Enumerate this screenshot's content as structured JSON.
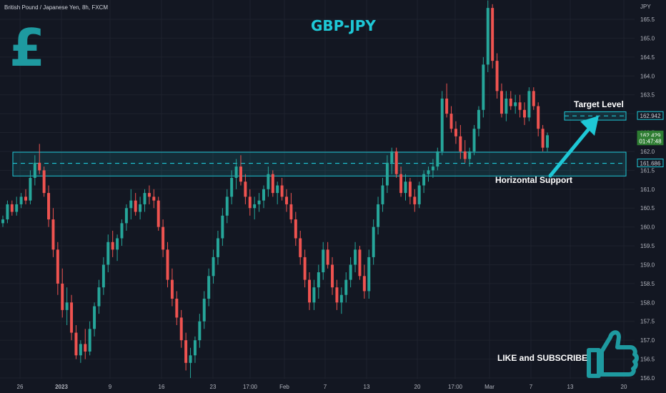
{
  "header": {
    "symbol_desc": "British Pound / Japanese Yen, 8h, FXCM"
  },
  "title": "GBP-JPY",
  "currency_unit": "JPY",
  "annotations": {
    "target": "Target Level",
    "support": "Horizontal Support",
    "cta": "LIKE and SUBSCRIBE"
  },
  "colors": {
    "up": "#26a69a",
    "down": "#ef5350",
    "accent": "#1ec8d6",
    "background": "#131722",
    "grid": "#1e222d"
  },
  "icons": {
    "logo": "pound-sign-icon",
    "cta": "thumbs-up-icon"
  },
  "chart_data": {
    "type": "candlestick",
    "yticks": [
      156.0,
      156.5,
      157.0,
      157.5,
      158.0,
      158.5,
      159.0,
      159.5,
      160.0,
      160.5,
      161.0,
      161.5,
      162.0,
      162.5,
      163.0,
      163.5,
      164.0,
      164.5,
      165.0,
      165.5
    ],
    "ylim": [
      155.9,
      166.0
    ],
    "xticks": [
      "26",
      "2023",
      "9",
      "16",
      "23",
      "17:00",
      "Feb",
      "7",
      "13",
      "20",
      "17:00",
      "Mar",
      "7",
      "13",
      "20"
    ],
    "price_labels": [
      {
        "text": "162.942",
        "value": 162.942,
        "style": "level"
      },
      {
        "text": "162.429",
        "value": 162.429,
        "style": "last"
      },
      {
        "text": "01:47:48",
        "value": 162.27,
        "style": "timer"
      },
      {
        "text": "161.686",
        "value": 161.686,
        "style": "level"
      }
    ],
    "levels": {
      "target": 162.942,
      "support": 161.686
    },
    "zones": {
      "support_zone": [
        161.35,
        161.98
      ],
      "target_zone": [
        162.83,
        163.05
      ]
    },
    "candles": [
      [
        160.1,
        160.3,
        160.0,
        160.2
      ],
      [
        160.2,
        160.7,
        160.1,
        160.6
      ],
      [
        160.6,
        160.7,
        160.3,
        160.4
      ],
      [
        160.4,
        160.8,
        160.3,
        160.6
      ],
      [
        160.6,
        160.9,
        160.5,
        160.8
      ],
      [
        160.8,
        161.0,
        160.6,
        160.7
      ],
      [
        160.7,
        161.5,
        160.6,
        161.3
      ],
      [
        161.3,
        161.9,
        161.1,
        161.7
      ],
      [
        161.7,
        162.2,
        161.4,
        161.5
      ],
      [
        161.5,
        161.6,
        160.8,
        160.9
      ],
      [
        160.9,
        161.1,
        160.0,
        160.2
      ],
      [
        160.2,
        160.5,
        159.2,
        159.4
      ],
      [
        159.4,
        159.6,
        158.2,
        158.5
      ],
      [
        158.5,
        158.9,
        157.6,
        157.8
      ],
      [
        157.8,
        158.4,
        157.4,
        158.0
      ],
      [
        158.0,
        158.2,
        157.0,
        157.2
      ],
      [
        157.2,
        157.4,
        156.5,
        156.6
      ],
      [
        156.6,
        157.0,
        156.4,
        156.9
      ],
      [
        156.9,
        157.3,
        156.5,
        156.7
      ],
      [
        156.7,
        157.5,
        156.6,
        157.3
      ],
      [
        157.3,
        158.0,
        157.1,
        157.9
      ],
      [
        157.9,
        158.6,
        157.7,
        158.4
      ],
      [
        158.4,
        159.2,
        158.2,
        159.0
      ],
      [
        159.0,
        159.8,
        158.8,
        159.6
      ],
      [
        159.6,
        159.9,
        159.2,
        159.4
      ],
      [
        159.4,
        159.8,
        159.1,
        159.7
      ],
      [
        159.7,
        160.2,
        159.5,
        160.1
      ],
      [
        160.1,
        160.6,
        159.9,
        160.5
      ],
      [
        160.5,
        161.0,
        160.2,
        160.7
      ],
      [
        160.7,
        160.9,
        160.3,
        160.4
      ],
      [
        160.4,
        160.8,
        160.2,
        160.6
      ],
      [
        160.6,
        161.0,
        160.4,
        160.9
      ],
      [
        160.9,
        161.1,
        160.6,
        160.8
      ],
      [
        160.8,
        161.0,
        160.5,
        160.7
      ],
      [
        160.7,
        160.8,
        159.9,
        160.0
      ],
      [
        160.0,
        160.2,
        159.2,
        159.4
      ],
      [
        159.4,
        159.6,
        158.4,
        158.6
      ],
      [
        158.6,
        158.9,
        157.9,
        158.1
      ],
      [
        158.1,
        158.3,
        157.4,
        157.6
      ],
      [
        157.6,
        157.8,
        156.8,
        157.0
      ],
      [
        157.0,
        157.2,
        156.2,
        156.4
      ],
      [
        156.4,
        156.8,
        156.0,
        156.6
      ],
      [
        156.6,
        157.1,
        156.4,
        157.0
      ],
      [
        157.0,
        157.7,
        156.8,
        157.5
      ],
      [
        157.5,
        158.3,
        157.3,
        158.1
      ],
      [
        158.1,
        158.9,
        157.9,
        158.7
      ],
      [
        158.7,
        159.4,
        158.5,
        159.2
      ],
      [
        159.2,
        159.9,
        159.0,
        159.7
      ],
      [
        159.7,
        160.5,
        159.5,
        160.3
      ],
      [
        160.3,
        161.0,
        160.1,
        160.8
      ],
      [
        160.8,
        161.5,
        160.6,
        161.3
      ],
      [
        161.3,
        161.8,
        161.0,
        161.6
      ],
      [
        161.6,
        161.9,
        161.1,
        161.2
      ],
      [
        161.2,
        161.4,
        160.6,
        160.8
      ],
      [
        160.8,
        161.0,
        160.3,
        160.5
      ],
      [
        160.5,
        160.8,
        160.2,
        160.6
      ],
      [
        160.6,
        160.9,
        160.4,
        160.7
      ],
      [
        160.7,
        161.1,
        160.5,
        161.0
      ],
      [
        161.0,
        161.6,
        160.8,
        161.4
      ],
      [
        161.4,
        161.5,
        160.8,
        160.9
      ],
      [
        160.9,
        161.2,
        160.6,
        161.1
      ],
      [
        161.1,
        161.3,
        160.7,
        160.8
      ],
      [
        160.8,
        161.0,
        160.4,
        160.6
      ],
      [
        160.6,
        160.9,
        160.1,
        160.2
      ],
      [
        160.2,
        160.4,
        159.5,
        159.7
      ],
      [
        159.7,
        159.9,
        159.0,
        159.2
      ],
      [
        159.2,
        159.4,
        158.4,
        158.6
      ],
      [
        158.6,
        158.8,
        157.8,
        158.0
      ],
      [
        158.0,
        158.6,
        157.8,
        158.4
      ],
      [
        158.4,
        159.0,
        158.1,
        158.8
      ],
      [
        158.8,
        159.6,
        158.6,
        159.4
      ],
      [
        159.4,
        159.6,
        158.9,
        159.0
      ],
      [
        159.0,
        159.2,
        158.2,
        158.4
      ],
      [
        158.4,
        158.6,
        157.8,
        158.0
      ],
      [
        158.0,
        158.4,
        157.7,
        158.2
      ],
      [
        158.2,
        158.8,
        158.0,
        158.6
      ],
      [
        158.6,
        159.2,
        158.4,
        159.0
      ],
      [
        159.0,
        159.6,
        158.8,
        159.4
      ],
      [
        159.4,
        159.5,
        158.6,
        158.7
      ],
      [
        158.7,
        159.0,
        158.1,
        158.3
      ],
      [
        158.3,
        159.4,
        158.1,
        159.2
      ],
      [
        159.2,
        160.2,
        159.0,
        160.0
      ],
      [
        160.0,
        160.8,
        159.8,
        160.6
      ],
      [
        160.6,
        161.3,
        160.4,
        161.1
      ],
      [
        161.1,
        161.9,
        160.9,
        161.7
      ],
      [
        161.7,
        162.1,
        161.4,
        162.0
      ],
      [
        162.0,
        162.1,
        161.3,
        161.4
      ],
      [
        161.4,
        161.6,
        160.8,
        160.9
      ],
      [
        160.9,
        161.4,
        160.7,
        161.2
      ],
      [
        161.2,
        161.3,
        160.6,
        160.8
      ],
      [
        160.8,
        161.0,
        160.4,
        160.6
      ],
      [
        160.6,
        161.2,
        160.5,
        161.1
      ],
      [
        161.1,
        161.5,
        160.9,
        161.4
      ],
      [
        161.4,
        161.6,
        161.2,
        161.5
      ],
      [
        161.5,
        161.8,
        161.3,
        161.6
      ],
      [
        161.6,
        162.1,
        161.5,
        162.0
      ],
      [
        162.0,
        163.6,
        161.9,
        163.4
      ],
      [
        163.4,
        163.8,
        162.9,
        163.0
      ],
      [
        163.0,
        163.2,
        162.5,
        162.6
      ],
      [
        162.6,
        162.8,
        162.2,
        162.4
      ],
      [
        162.4,
        162.7,
        161.8,
        162.0
      ],
      [
        162.0,
        162.3,
        161.7,
        161.8
      ],
      [
        161.8,
        162.1,
        161.6,
        162.0
      ],
      [
        162.0,
        162.7,
        161.9,
        162.6
      ],
      [
        162.6,
        163.2,
        162.4,
        163.1
      ],
      [
        163.1,
        164.5,
        162.9,
        164.3
      ],
      [
        164.3,
        166.0,
        164.1,
        165.8
      ],
      [
        165.8,
        165.9,
        164.2,
        164.4
      ],
      [
        164.4,
        164.6,
        163.4,
        163.6
      ],
      [
        163.6,
        163.8,
        162.9,
        163.0
      ],
      [
        163.0,
        163.6,
        162.8,
        163.4
      ],
      [
        163.4,
        163.6,
        163.1,
        163.2
      ],
      [
        163.2,
        163.5,
        163.0,
        163.3
      ],
      [
        163.3,
        163.5,
        162.9,
        163.1
      ],
      [
        163.1,
        163.3,
        162.7,
        162.9
      ],
      [
        162.9,
        163.7,
        162.8,
        163.6
      ],
      [
        163.6,
        163.7,
        163.1,
        163.2
      ],
      [
        163.2,
        163.3,
        162.4,
        162.6
      ],
      [
        162.6,
        162.7,
        162.0,
        162.1
      ],
      [
        162.1,
        162.5,
        162.0,
        162.429
      ]
    ]
  }
}
